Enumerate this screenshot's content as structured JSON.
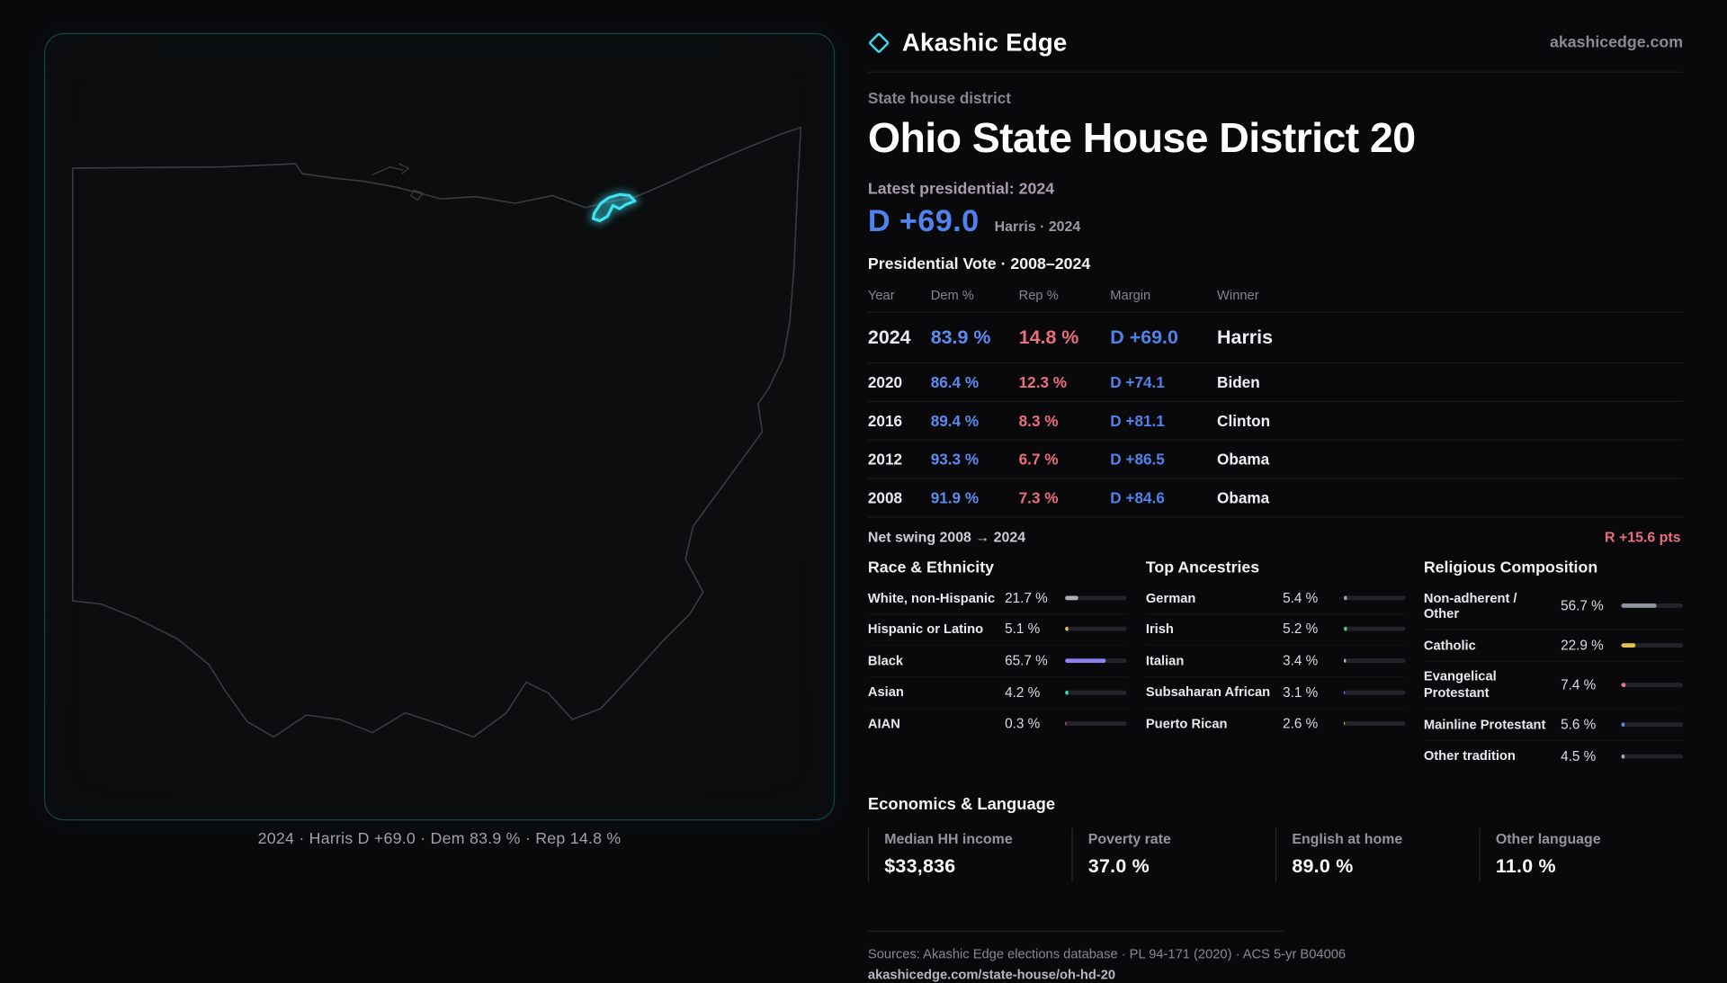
{
  "brand": {
    "name": "Akashic Edge",
    "domain": "akashicedge.com"
  },
  "page": {
    "kicker": "State house district",
    "title": "Ohio State House District 20",
    "latest_label": "Latest presidential: 2024",
    "headline_margin": "D +69.0",
    "headline_sub": "Harris · 2024"
  },
  "map": {
    "caption": "2024 · Harris D +69.0 · Dem 83.9 % · Rep 14.8 %",
    "highlight_color": "#3fe1f2"
  },
  "accents": {
    "dem_blue": "#5b8bf0",
    "rep_red": "#ea6d80",
    "margin_blue": "#4f82ea",
    "swing_red": "#ea6d80",
    "highlight_cyan": "#3fe1f2"
  },
  "vote_table": {
    "title": "Presidential Vote · 2008–2024",
    "columns": [
      "Year",
      "Dem %",
      "Rep %",
      "Margin",
      "Winner"
    ],
    "rows": [
      {
        "year": "2024",
        "dem": "83.9 %",
        "rep": "14.8 %",
        "margin": "D +69.0",
        "winner": "Harris"
      },
      {
        "year": "2020",
        "dem": "86.4 %",
        "rep": "12.3 %",
        "margin": "D +74.1",
        "winner": "Biden"
      },
      {
        "year": "2016",
        "dem": "89.4 %",
        "rep": "8.3 %",
        "margin": "D +81.1",
        "winner": "Clinton"
      },
      {
        "year": "2012",
        "dem": "93.3 %",
        "rep": "6.7 %",
        "margin": "D +86.5",
        "winner": "Obama"
      },
      {
        "year": "2008",
        "dem": "91.9 %",
        "rep": "7.3 %",
        "margin": "D +84.6",
        "winner": "Obama"
      }
    ],
    "net_swing_label": "Net swing 2008 → 2024",
    "net_swing_value": "R +15.6 pts"
  },
  "demographics": {
    "race": {
      "title": "Race & Ethnicity",
      "rows": [
        {
          "label": "White, non-Hispanic",
          "value": "21.7 %",
          "pct": 21.7,
          "color": "#aab0b8"
        },
        {
          "label": "Hispanic or Latino",
          "value": "5.1 %",
          "pct": 5.1,
          "color": "#e5b94e"
        },
        {
          "label": "Black",
          "value": "65.7 %",
          "pct": 65.7,
          "color": "#8e82f2"
        },
        {
          "label": "Asian",
          "value": "4.2 %",
          "pct": 4.2,
          "color": "#43d6a5"
        },
        {
          "label": "AIAN",
          "value": "0.3 %",
          "pct": 0.3,
          "color": "#e06c88"
        }
      ]
    },
    "ancestry": {
      "title": "Top Ancestries",
      "rows": [
        {
          "label": "German",
          "value": "5.4 %",
          "pct": 5.4,
          "color": "#9aa0a8"
        },
        {
          "label": "Irish",
          "value": "5.2 %",
          "pct": 5.2,
          "color": "#59c08a"
        },
        {
          "label": "Italian",
          "value": "3.4 %",
          "pct": 3.4,
          "color": "#b0b4bc"
        },
        {
          "label": "Subsaharan African",
          "value": "3.1 %",
          "pct": 3.1,
          "color": "#6d79e0"
        },
        {
          "label": "Puerto Rican",
          "value": "2.6 %",
          "pct": 2.6,
          "color": "#e0b54e"
        }
      ]
    },
    "religion": {
      "title": "Religious Composition",
      "rows": [
        {
          "label": "Non-adherent / Other",
          "value": "56.7 %",
          "pct": 56.7,
          "color": "#9094a0"
        },
        {
          "label": "Catholic",
          "value": "22.9 %",
          "pct": 22.9,
          "color": "#e0c04e"
        },
        {
          "label": "Evangelical Protestant",
          "value": "7.4 %",
          "pct": 7.4,
          "color": "#ed7287"
        },
        {
          "label": "Mainline Protestant",
          "value": "5.6 %",
          "pct": 5.6,
          "color": "#5c8bf0"
        },
        {
          "label": "Other tradition",
          "value": "4.5 %",
          "pct": 4.5,
          "color": "#a0a4ac"
        }
      ]
    }
  },
  "economics": {
    "title": "Economics & Language",
    "stats": [
      {
        "label": "Median HH income",
        "value": "$33,836"
      },
      {
        "label": "Poverty rate",
        "value": "37.0 %"
      },
      {
        "label": "English at home",
        "value": "89.0 %"
      },
      {
        "label": "Other language",
        "value": "11.0 %"
      }
    ]
  },
  "footer": {
    "sources": "Sources: Akashic Edge elections database · PL 94-171 (2020) · ACS 5-yr B04006",
    "permalink": "akashicedge.com/state-house/oh-hd-20"
  }
}
